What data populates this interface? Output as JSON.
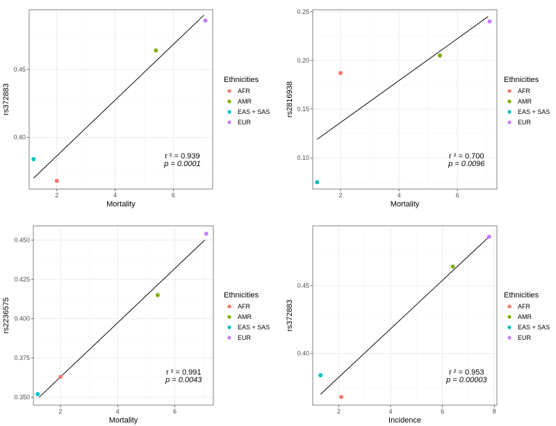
{
  "chart_data": [
    {
      "type": "scatter",
      "xlabel": "Mortality",
      "ylabel": "rs372883",
      "xlim": [
        1.05,
        7.35
      ],
      "ylim": [
        0.362,
        0.494
      ],
      "xticks": [
        2,
        4,
        6
      ],
      "xtick_labels": [
        "2",
        "4",
        "6"
      ],
      "yticks": [
        0.4,
        0.45
      ],
      "ytick_labels": [
        "0.40",
        "0.45"
      ],
      "grid": true,
      "points": [
        {
          "group": "AFR",
          "x": 2.0,
          "y": 0.368
        },
        {
          "group": "AMR",
          "x": 5.4,
          "y": 0.464
        },
        {
          "group": "EAS + SAS",
          "x": 1.2,
          "y": 0.384
        },
        {
          "group": "EUR",
          "x": 7.1,
          "y": 0.486
        }
      ],
      "fit_line": {
        "x": [
          1.2,
          7.05
        ],
        "y": [
          0.37,
          0.49
        ]
      },
      "annotation": {
        "r2_label": "r ² = 0.939",
        "p_label": "p = 0.0001"
      },
      "legend": {
        "title": "Ethnicities",
        "placement": "right"
      }
    },
    {
      "type": "scatter",
      "xlabel": "Mortality",
      "ylabel": "rs2816938",
      "xlim": [
        1.05,
        7.35
      ],
      "ylim": [
        0.068,
        0.252
      ],
      "xticks": [
        2,
        4,
        6
      ],
      "xtick_labels": [
        "2",
        "4",
        "6"
      ],
      "yticks": [
        0.1,
        0.15,
        0.2,
        0.25
      ],
      "ytick_labels": [
        "0.10",
        "0.15",
        "0.20",
        "0.25"
      ],
      "grid": true,
      "points": [
        {
          "group": "AFR",
          "x": 2.0,
          "y": 0.187
        },
        {
          "group": "AMR",
          "x": 5.4,
          "y": 0.205
        },
        {
          "group": "EAS + SAS",
          "x": 1.2,
          "y": 0.075
        },
        {
          "group": "EUR",
          "x": 7.1,
          "y": 0.24
        }
      ],
      "fit_line": {
        "x": [
          1.2,
          7.05
        ],
        "y": [
          0.119,
          0.245
        ]
      },
      "annotation": {
        "r2_label": "r ² = 0.700",
        "p_label": "p = 0.0096"
      },
      "legend": {
        "title": "Ethnicities",
        "placement": "right"
      }
    },
    {
      "type": "scatter",
      "xlabel": "Mortality",
      "ylabel": "rs2236575",
      "xlim": [
        1.05,
        7.35
      ],
      "ylim": [
        0.345,
        0.459
      ],
      "xticks": [
        2,
        4,
        6
      ],
      "xtick_labels": [
        "2",
        "4",
        "6"
      ],
      "yticks": [
        0.35,
        0.375,
        0.4,
        0.425,
        0.45
      ],
      "ytick_labels": [
        "0.350",
        "0.375",
        "0.400",
        "0.425",
        "0.450"
      ],
      "grid": true,
      "points": [
        {
          "group": "AFR",
          "x": 2.0,
          "y": 0.363
        },
        {
          "group": "AMR",
          "x": 5.4,
          "y": 0.415
        },
        {
          "group": "EAS + SAS",
          "x": 1.2,
          "y": 0.352
        },
        {
          "group": "EUR",
          "x": 7.1,
          "y": 0.454
        }
      ],
      "fit_line": {
        "x": [
          1.25,
          7.05
        ],
        "y": [
          0.35,
          0.45
        ]
      },
      "annotation": {
        "r2_label": "r ² = 0.991",
        "p_label": "p = 0.0043"
      },
      "legend": {
        "title": "Ethnicities",
        "placement": "right"
      }
    },
    {
      "type": "scatter",
      "xlabel": "Incidence",
      "ylabel": "rs372883",
      "xlim": [
        1.0,
        8.1
      ],
      "ylim": [
        0.362,
        0.494
      ],
      "xticks": [
        2,
        4,
        6,
        8
      ],
      "xtick_labels": [
        "2",
        "4",
        "6",
        "8"
      ],
      "yticks": [
        0.4,
        0.45
      ],
      "ytick_labels": [
        "0.40",
        "0.45"
      ],
      "grid": true,
      "points": [
        {
          "group": "AFR",
          "x": 2.1,
          "y": 0.368
        },
        {
          "group": "AMR",
          "x": 6.4,
          "y": 0.464
        },
        {
          "group": "EAS + SAS",
          "x": 1.3,
          "y": 0.384
        },
        {
          "group": "EUR",
          "x": 7.8,
          "y": 0.486
        }
      ],
      "fit_line": {
        "x": [
          1.3,
          7.8
        ],
        "y": [
          0.37,
          0.486
        ]
      },
      "annotation": {
        "r2_label": "r ² = 0.953",
        "p_label": "p = 0.00003"
      },
      "legend": {
        "title": "Ethnicities",
        "placement": "right"
      }
    }
  ],
  "legend": {
    "title": "Ethnicities",
    "items": [
      {
        "label": "AFR",
        "color": "#F8766D"
      },
      {
        "label": "AMR",
        "color": "#7CAE00"
      },
      {
        "label": "EAS + SAS",
        "color": "#00BFC4"
      },
      {
        "label": "EUR",
        "color": "#C77CFF"
      }
    ]
  },
  "colors": {
    "panel_border": "#7f7f7f",
    "grid_major": "#ebebeb",
    "grid_minor": "#f5f5f5",
    "fit_line": "#000000"
  }
}
